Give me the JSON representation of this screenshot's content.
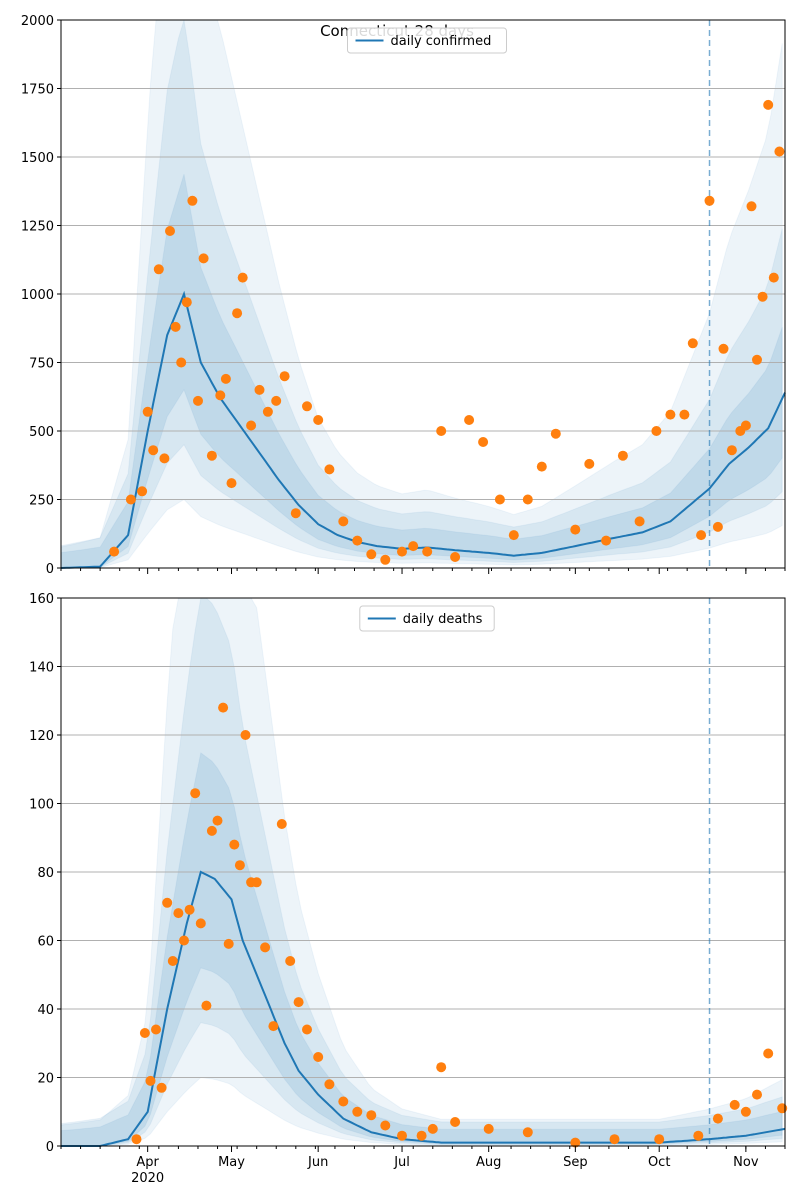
{
  "title": "Connecticut 28 days",
  "x_tick_labels": [
    "Apr",
    "May",
    "Jun",
    "Jul",
    "Aug",
    "Sep",
    "Oct",
    "Nov"
  ],
  "x_year_label": "2020",
  "colors": {
    "line": "#1f77b4",
    "points": "#ff7f0e",
    "band": "#1f77b4",
    "grid": "#b0b0b0",
    "forecast_line": "#1f77b4"
  },
  "chart_data": [
    {
      "type": "line",
      "panel": "top",
      "series": [
        {
          "name": "daily confirmed",
          "role": "model",
          "x": [
            "2020-03-01",
            "2020-03-15",
            "2020-03-25",
            "2020-04-01",
            "2020-04-08",
            "2020-04-14",
            "2020-04-20",
            "2020-04-27",
            "2020-05-04",
            "2020-05-11",
            "2020-05-18",
            "2020-05-25",
            "2020-06-01",
            "2020-06-08",
            "2020-06-15",
            "2020-06-22",
            "2020-07-01",
            "2020-07-10",
            "2020-07-20",
            "2020-08-01",
            "2020-08-10",
            "2020-08-20",
            "2020-09-01",
            "2020-09-15",
            "2020-09-25",
            "2020-10-05",
            "2020-10-12",
            "2020-10-19",
            "2020-10-26",
            "2020-11-02",
            "2020-11-09",
            "2020-11-15"
          ],
          "values": [
            0,
            5,
            120,
            500,
            850,
            1000,
            750,
            620,
            520,
            420,
            320,
            230,
            160,
            120,
            95,
            80,
            70,
            75,
            65,
            55,
            45,
            55,
            80,
            110,
            130,
            170,
            230,
            290,
            380,
            440,
            510,
            640
          ]
        },
        {
          "name": "observed",
          "role": "data",
          "x": [
            "2020-03-20",
            "2020-03-26",
            "2020-03-30",
            "2020-04-01",
            "2020-04-03",
            "2020-04-05",
            "2020-04-07",
            "2020-04-09",
            "2020-04-11",
            "2020-04-13",
            "2020-04-15",
            "2020-04-17",
            "2020-04-19",
            "2020-04-21",
            "2020-04-24",
            "2020-04-27",
            "2020-04-29",
            "2020-05-01",
            "2020-05-03",
            "2020-05-05",
            "2020-05-08",
            "2020-05-11",
            "2020-05-14",
            "2020-05-17",
            "2020-05-20",
            "2020-05-24",
            "2020-05-28",
            "2020-06-01",
            "2020-06-05",
            "2020-06-10",
            "2020-06-15",
            "2020-06-20",
            "2020-06-25",
            "2020-07-01",
            "2020-07-05",
            "2020-07-10",
            "2020-07-15",
            "2020-07-20",
            "2020-07-25",
            "2020-07-30",
            "2020-08-05",
            "2020-08-10",
            "2020-08-15",
            "2020-08-20",
            "2020-08-25",
            "2020-09-01",
            "2020-09-06",
            "2020-09-12",
            "2020-09-18",
            "2020-09-24",
            "2020-09-30",
            "2020-10-05",
            "2020-10-10",
            "2020-10-13",
            "2020-10-16",
            "2020-10-19",
            "2020-10-22",
            "2020-10-24",
            "2020-10-27",
            "2020-10-30",
            "2020-11-01",
            "2020-11-03",
            "2020-11-05",
            "2020-11-07",
            "2020-11-09",
            "2020-11-11",
            "2020-11-13"
          ],
          "values": [
            60,
            250,
            280,
            570,
            430,
            1090,
            400,
            1230,
            880,
            750,
            970,
            1340,
            610,
            1130,
            410,
            630,
            690,
            310,
            930,
            1060,
            520,
            650,
            570,
            610,
            700,
            200,
            590,
            540,
            360,
            170,
            100,
            50,
            30,
            60,
            80,
            60,
            500,
            40,
            540,
            460,
            250,
            120,
            250,
            370,
            490,
            140,
            380,
            100,
            410,
            170,
            500,
            560,
            560,
            820,
            120,
            1340,
            150,
            800,
            430,
            500,
            520,
            1320,
            760,
            990,
            1690,
            1060,
            1520
          ]
        }
      ],
      "legend": [
        "daily confirmed"
      ],
      "legend_placement": "top-center",
      "ylim": [
        0,
        2000
      ],
      "y_ticks": [
        0,
        250,
        500,
        750,
        1000,
        1250,
        1500,
        1750,
        2000
      ],
      "forecast_start": "2020-10-19",
      "grid": "horizontal"
    },
    {
      "type": "line",
      "panel": "bottom",
      "series": [
        {
          "name": "daily deaths",
          "role": "model",
          "x": [
            "2020-03-01",
            "2020-03-15",
            "2020-03-25",
            "2020-04-01",
            "2020-04-08",
            "2020-04-15",
            "2020-04-20",
            "2020-04-25",
            "2020-05-01",
            "2020-05-05",
            "2020-05-10",
            "2020-05-15",
            "2020-05-20",
            "2020-05-25",
            "2020-06-01",
            "2020-06-10",
            "2020-06-20",
            "2020-07-01",
            "2020-07-15",
            "2020-08-01",
            "2020-08-15",
            "2020-09-01",
            "2020-09-15",
            "2020-10-01",
            "2020-10-19",
            "2020-11-01",
            "2020-11-15"
          ],
          "values": [
            0,
            0,
            2,
            10,
            40,
            65,
            80,
            78,
            72,
            60,
            50,
            40,
            30,
            22,
            15,
            8,
            4,
            2,
            1,
            1,
            1,
            1,
            1,
            1,
            2,
            3,
            5
          ]
        },
        {
          "name": "observed",
          "role": "data",
          "x": [
            "2020-03-28",
            "2020-03-31",
            "2020-04-02",
            "2020-04-04",
            "2020-04-06",
            "2020-04-08",
            "2020-04-10",
            "2020-04-12",
            "2020-04-14",
            "2020-04-16",
            "2020-04-18",
            "2020-04-20",
            "2020-04-22",
            "2020-04-24",
            "2020-04-26",
            "2020-04-28",
            "2020-04-30",
            "2020-05-02",
            "2020-05-04",
            "2020-05-06",
            "2020-05-08",
            "2020-05-10",
            "2020-05-13",
            "2020-05-16",
            "2020-05-19",
            "2020-05-22",
            "2020-05-25",
            "2020-05-28",
            "2020-06-01",
            "2020-06-05",
            "2020-06-10",
            "2020-06-15",
            "2020-06-20",
            "2020-06-25",
            "2020-07-01",
            "2020-07-08",
            "2020-07-12",
            "2020-07-15",
            "2020-07-20",
            "2020-08-01",
            "2020-08-15",
            "2020-09-01",
            "2020-09-15",
            "2020-10-01",
            "2020-10-15",
            "2020-10-22",
            "2020-10-28",
            "2020-11-01",
            "2020-11-05",
            "2020-11-09",
            "2020-11-14"
          ],
          "values": [
            2,
            33,
            19,
            34,
            17,
            71,
            54,
            68,
            60,
            69,
            103,
            65,
            41,
            92,
            95,
            128,
            59,
            88,
            82,
            120,
            77,
            77,
            58,
            35,
            94,
            54,
            42,
            34,
            26,
            18,
            13,
            10,
            9,
            6,
            3,
            3,
            5,
            23,
            7,
            5,
            4,
            1,
            2,
            2,
            3,
            8,
            12,
            10,
            15,
            27,
            11
          ]
        }
      ],
      "legend": [
        "daily deaths"
      ],
      "legend_placement": "top-center",
      "ylim": [
        0,
        160
      ],
      "y_ticks": [
        0,
        20,
        40,
        60,
        80,
        100,
        120,
        140,
        160
      ],
      "forecast_start": "2020-10-19",
      "grid": "horizontal"
    }
  ]
}
